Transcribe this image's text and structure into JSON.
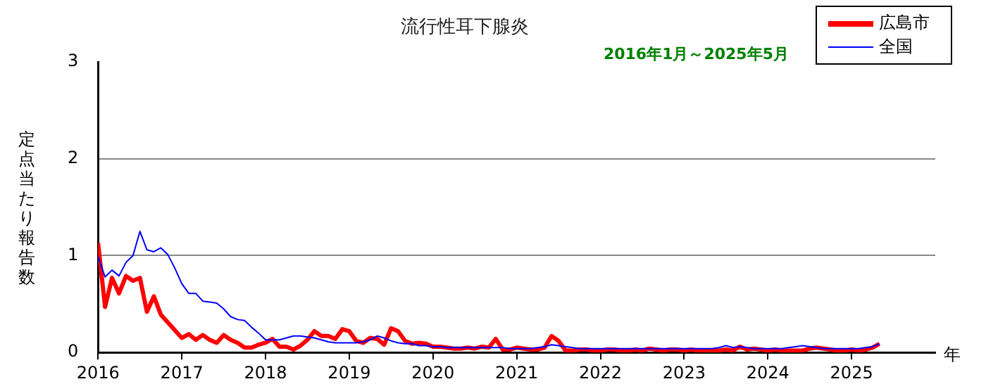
{
  "chart_data": {
    "type": "line",
    "title": "流行性耳下腺炎",
    "subtitle": "2016年1月～2025年5月",
    "ylabel": "定点当たり報告数",
    "xlabel": "年",
    "x": [
      "2016-01",
      "2016-02",
      "2016-03",
      "2016-04",
      "2016-05",
      "2016-06",
      "2016-07",
      "2016-08",
      "2016-09",
      "2016-10",
      "2016-11",
      "2016-12",
      "2017-01",
      "2017-02",
      "2017-03",
      "2017-04",
      "2017-05",
      "2017-06",
      "2017-07",
      "2017-08",
      "2017-09",
      "2017-10",
      "2017-11",
      "2017-12",
      "2018-01",
      "2018-02",
      "2018-03",
      "2018-04",
      "2018-05",
      "2018-06",
      "2018-07",
      "2018-08",
      "2018-09",
      "2018-10",
      "2018-11",
      "2018-12",
      "2019-01",
      "2019-02",
      "2019-03",
      "2019-04",
      "2019-05",
      "2019-06",
      "2019-07",
      "2019-08",
      "2019-09",
      "2019-10",
      "2019-11",
      "2019-12",
      "2020-01",
      "2020-02",
      "2020-03",
      "2020-04",
      "2020-05",
      "2020-06",
      "2020-07",
      "2020-08",
      "2020-09",
      "2020-10",
      "2020-11",
      "2020-12",
      "2021-01",
      "2021-02",
      "2021-03",
      "2021-04",
      "2021-05",
      "2021-06",
      "2021-07",
      "2021-08",
      "2021-09",
      "2021-10",
      "2021-11",
      "2021-12",
      "2022-01",
      "2022-02",
      "2022-03",
      "2022-04",
      "2022-05",
      "2022-06",
      "2022-07",
      "2022-08",
      "2022-09",
      "2022-10",
      "2022-11",
      "2022-12",
      "2023-01",
      "2023-02",
      "2023-03",
      "2023-04",
      "2023-05",
      "2023-06",
      "2023-07",
      "2023-08",
      "2023-09",
      "2023-10",
      "2023-11",
      "2023-12",
      "2024-01",
      "2024-02",
      "2024-03",
      "2024-04",
      "2024-05",
      "2024-06",
      "2024-07",
      "2024-08",
      "2024-09",
      "2024-10",
      "2024-11",
      "2024-12",
      "2025-01",
      "2025-02",
      "2025-03",
      "2025-04",
      "2025-05"
    ],
    "series": [
      {
        "name": "広島市",
        "color": "#ff0000",
        "values": [
          1.13,
          0.47,
          0.77,
          0.61,
          0.79,
          0.74,
          0.77,
          0.42,
          0.58,
          0.39,
          0.31,
          0.23,
          0.15,
          0.19,
          0.13,
          0.18,
          0.13,
          0.1,
          0.18,
          0.13,
          0.1,
          0.05,
          0.05,
          0.08,
          0.1,
          0.14,
          0.06,
          0.06,
          0.03,
          0.07,
          0.13,
          0.22,
          0.17,
          0.17,
          0.14,
          0.24,
          0.22,
          0.12,
          0.1,
          0.15,
          0.14,
          0.08,
          0.25,
          0.22,
          0.12,
          0.09,
          0.1,
          0.09,
          0.06,
          0.06,
          0.05,
          0.04,
          0.04,
          0.05,
          0.04,
          0.06,
          0.05,
          0.14,
          0.03,
          0.03,
          0.05,
          0.04,
          0.03,
          0.03,
          0.05,
          0.17,
          0.12,
          0.02,
          0.02,
          0.03,
          0.03,
          0.02,
          0.02,
          0.03,
          0.03,
          0.02,
          0.02,
          0.03,
          0.02,
          0.04,
          0.03,
          0.02,
          0.03,
          0.03,
          0.02,
          0.03,
          0.02,
          0.02,
          0.02,
          0.02,
          0.03,
          0.02,
          0.06,
          0.03,
          0.04,
          0.03,
          0.02,
          0.03,
          0.02,
          0.02,
          0.02,
          0.02,
          0.04,
          0.05,
          0.04,
          0.03,
          0.02,
          0.02,
          0.03,
          0.02,
          0.03,
          0.05,
          0.09
        ]
      },
      {
        "name": "全国",
        "color": "#0000ff",
        "values": [
          0.99,
          0.78,
          0.85,
          0.79,
          0.93,
          1.0,
          1.25,
          1.06,
          1.04,
          1.08,
          1.01,
          0.87,
          0.71,
          0.61,
          0.61,
          0.53,
          0.52,
          0.51,
          0.45,
          0.37,
          0.34,
          0.33,
          0.26,
          0.2,
          0.13,
          0.13,
          0.13,
          0.15,
          0.17,
          0.17,
          0.16,
          0.15,
          0.13,
          0.11,
          0.1,
          0.1,
          0.1,
          0.1,
          0.11,
          0.13,
          0.17,
          0.15,
          0.12,
          0.1,
          0.09,
          0.09,
          0.07,
          0.07,
          0.06,
          0.06,
          0.05,
          0.05,
          0.05,
          0.05,
          0.05,
          0.05,
          0.05,
          0.05,
          0.05,
          0.04,
          0.04,
          0.04,
          0.04,
          0.05,
          0.06,
          0.08,
          0.07,
          0.06,
          0.05,
          0.04,
          0.04,
          0.04,
          0.04,
          0.04,
          0.04,
          0.04,
          0.04,
          0.04,
          0.04,
          0.04,
          0.04,
          0.04,
          0.04,
          0.04,
          0.04,
          0.04,
          0.04,
          0.04,
          0.04,
          0.05,
          0.07,
          0.05,
          0.06,
          0.05,
          0.04,
          0.04,
          0.04,
          0.04,
          0.04,
          0.05,
          0.06,
          0.07,
          0.06,
          0.05,
          0.04,
          0.04,
          0.04,
          0.04,
          0.04,
          0.04,
          0.05,
          0.06,
          0.09
        ]
      }
    ],
    "xlim": [
      "2016",
      "2026"
    ],
    "xticks": [
      "2016",
      "2017",
      "2018",
      "2019",
      "2020",
      "2021",
      "2022",
      "2023",
      "2024",
      "2025"
    ],
    "ylim": [
      0,
      3
    ],
    "yticks": [
      0,
      1,
      2,
      3
    ],
    "grid": "y",
    "legend": "top right",
    "marker": "none",
    "line_style": "solid"
  }
}
